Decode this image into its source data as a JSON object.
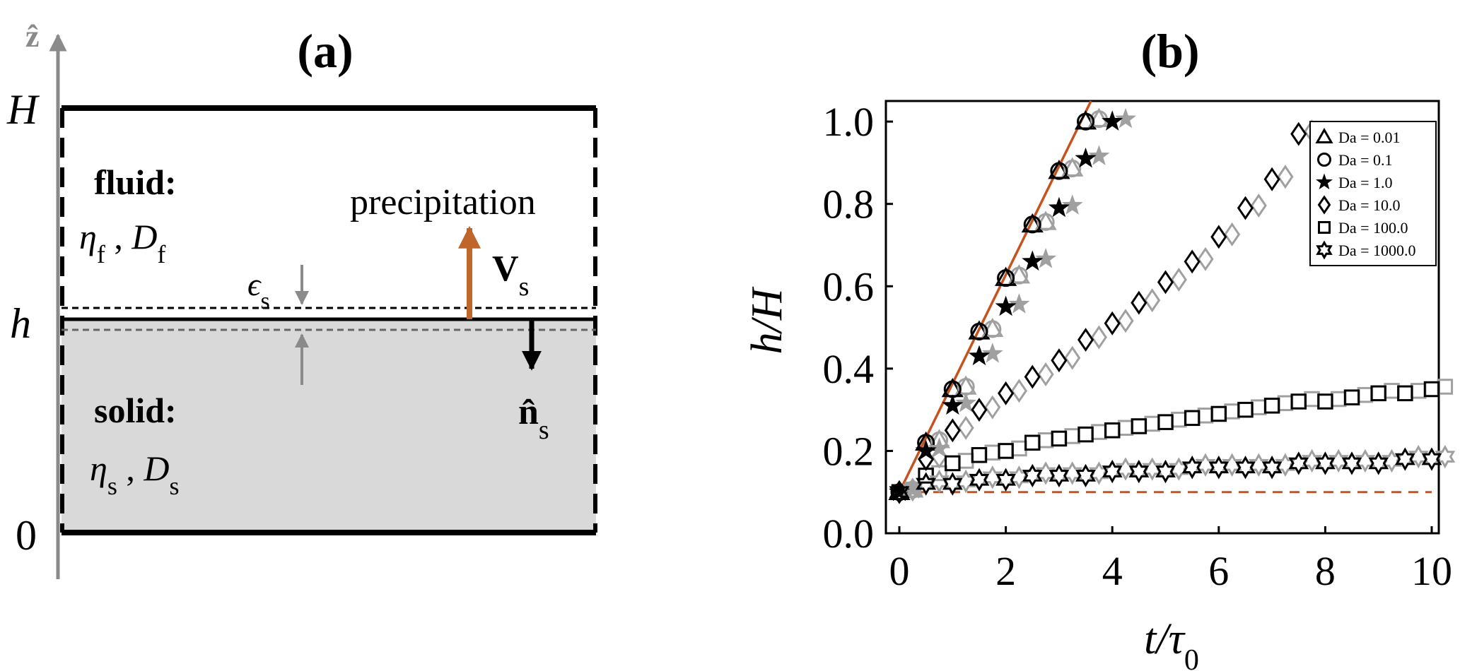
{
  "panel_a": {
    "label": "(a)",
    "z_axis_label": "ẑ",
    "H_label": "H",
    "h_label": "h",
    "zero_label": "0",
    "fluid": {
      "title": "fluid:",
      "eta": "η",
      "eta_sub": "f",
      "comma": " , ",
      "D": "D",
      "D_sub": "f"
    },
    "solid": {
      "title": "solid:",
      "eta": "η",
      "eta_sub": "s",
      "comma": " , ",
      "D": "D",
      "D_sub": "s"
    },
    "precipitation_label": "precipitation",
    "velocity": "V",
    "velocity_sub": "s",
    "normal": "n̂",
    "normal_sub": "s",
    "epsilon": "ϵ",
    "epsilon_sub": "s",
    "colors": {
      "solid_fill": "#d9d9d9",
      "arrow_orange": "#c0662a",
      "gray": "#8a8a8a"
    }
  },
  "panel_b": {
    "label": "(b)",
    "chart_data": {
      "type": "scatter",
      "xlabel": "t/τ₀",
      "ylabel": "h/H",
      "xlim": [
        0,
        10
      ],
      "ylim": [
        0,
        1.05
      ],
      "xticks": [
        "0",
        "2",
        "4",
        "6",
        "8",
        "10"
      ],
      "yticks": [
        "0.0",
        "0.2",
        "0.4",
        "0.6",
        "0.8",
        "1.0"
      ],
      "legend_position": "top-right",
      "series": [
        {
          "name": "Da = 0.01",
          "marker": "triangle",
          "x": [
            0,
            0.5,
            1.0,
            1.5,
            2.0,
            2.5,
            3.0,
            3.5
          ],
          "y": [
            0.1,
            0.22,
            0.35,
            0.49,
            0.62,
            0.75,
            0.88,
            1.0
          ]
        },
        {
          "name": "Da = 0.1",
          "marker": "circle",
          "x": [
            0,
            0.5,
            1.0,
            1.5,
            2.0,
            2.5,
            3.0,
            3.5
          ],
          "y": [
            0.1,
            0.22,
            0.35,
            0.49,
            0.62,
            0.75,
            0.88,
            1.0
          ]
        },
        {
          "name": "Da = 1.0",
          "marker": "star5",
          "x": [
            0,
            0.5,
            1.0,
            1.5,
            2.0,
            2.5,
            3.0,
            3.5,
            4.0
          ],
          "y": [
            0.1,
            0.2,
            0.31,
            0.43,
            0.55,
            0.66,
            0.79,
            0.91,
            1.0
          ]
        },
        {
          "name": "Da = 10.0",
          "marker": "diamond",
          "x": [
            0,
            0.5,
            1.0,
            1.5,
            2.0,
            2.5,
            3.0,
            3.5,
            4.0,
            4.5,
            5.0,
            5.5,
            6.0,
            6.5,
            7.0,
            7.5
          ],
          "y": [
            0.1,
            0.18,
            0.25,
            0.3,
            0.34,
            0.38,
            0.42,
            0.47,
            0.51,
            0.56,
            0.61,
            0.66,
            0.72,
            0.79,
            0.86,
            0.97
          ]
        },
        {
          "name": "Da = 100.0",
          "marker": "square",
          "x": [
            0,
            0.5,
            1.0,
            1.5,
            2.0,
            2.5,
            3.0,
            3.5,
            4.0,
            4.5,
            5.0,
            5.5,
            6.0,
            6.5,
            7.0,
            7.5,
            8.0,
            8.5,
            9.0,
            9.5,
            10.0
          ],
          "y": [
            0.1,
            0.14,
            0.17,
            0.19,
            0.2,
            0.22,
            0.23,
            0.24,
            0.25,
            0.26,
            0.27,
            0.28,
            0.29,
            0.3,
            0.31,
            0.32,
            0.32,
            0.33,
            0.34,
            0.34,
            0.35
          ]
        },
        {
          "name": "Da = 1000.0",
          "marker": "star6",
          "x": [
            0,
            0.5,
            1.0,
            1.5,
            2.0,
            2.5,
            3.0,
            3.5,
            4.0,
            4.5,
            5.0,
            5.5,
            6.0,
            6.5,
            7.0,
            7.5,
            8.0,
            8.5,
            9.0,
            9.5,
            10.0
          ],
          "y": [
            0.1,
            0.12,
            0.12,
            0.13,
            0.13,
            0.14,
            0.14,
            0.14,
            0.15,
            0.15,
            0.15,
            0.16,
            0.16,
            0.16,
            0.16,
            0.17,
            0.17,
            0.17,
            0.17,
            0.18,
            0.18
          ]
        }
      ],
      "reference_line": {
        "x": [
          0,
          3.6
        ],
        "y": [
          0.1,
          1.05
        ],
        "color": "#c8521e"
      },
      "baseline": {
        "y": 0.1,
        "color": "#c8521e",
        "style": "dashed"
      },
      "marker_colors": {
        "primary": "#000000",
        "secondary": "#a0a0a0"
      }
    }
  }
}
